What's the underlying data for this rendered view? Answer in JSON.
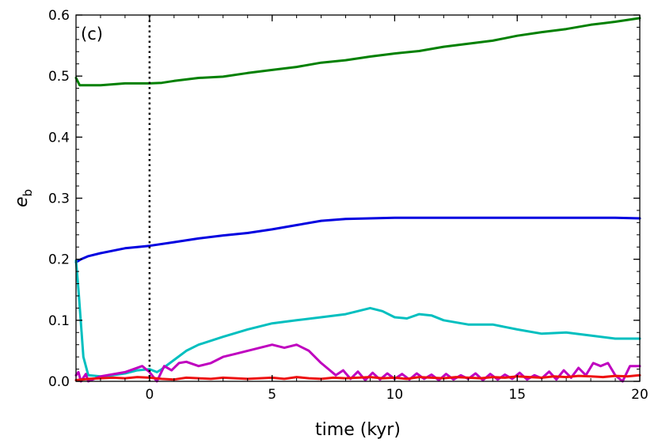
{
  "chart_data": {
    "type": "line",
    "panel_label": "(c)",
    "xlabel": "time (kyr)",
    "ylabel_main": "e",
    "ylabel_sub": "b",
    "xlim": [
      -3,
      20
    ],
    "ylim": [
      0,
      0.6
    ],
    "x_ticks": [
      0,
      5,
      10,
      15,
      20
    ],
    "x_tick_labels": [
      "0",
      "5",
      "10",
      "15",
      "20"
    ],
    "y_ticks": [
      0,
      0.1,
      0.2,
      0.3,
      0.4,
      0.5,
      0.6
    ],
    "y_tick_labels": [
      "0.0",
      "0.1",
      "0.2",
      "0.3",
      "0.4",
      "0.5",
      "0.6"
    ],
    "x_minor_step": 1,
    "y_minor_step": 0.02,
    "vline_x": 0,
    "grid": false,
    "series": [
      {
        "color": "#008000",
        "x": [
          -3,
          -2.85,
          -2,
          -1,
          0,
          0.5,
          1,
          2,
          3,
          4,
          5,
          6,
          7,
          8,
          9,
          10,
          11,
          12,
          13,
          14,
          15,
          16,
          17,
          18,
          19,
          20
        ],
        "y": [
          0.497,
          0.485,
          0.485,
          0.488,
          0.488,
          0.489,
          0.492,
          0.497,
          0.499,
          0.505,
          0.51,
          0.515,
          0.522,
          0.526,
          0.532,
          0.537,
          0.541,
          0.548,
          0.553,
          0.558,
          0.566,
          0.572,
          0.577,
          0.584,
          0.589,
          0.595
        ]
      },
      {
        "color": "#0000e0",
        "x": [
          -3,
          -2.8,
          -2.5,
          -2,
          -1,
          0,
          1,
          2,
          3,
          4,
          5,
          6,
          7,
          8,
          9,
          10,
          11,
          12,
          13,
          14,
          15,
          16,
          17,
          18,
          19,
          20
        ],
        "y": [
          0.195,
          0.2,
          0.205,
          0.21,
          0.218,
          0.222,
          0.228,
          0.234,
          0.239,
          0.243,
          0.249,
          0.256,
          0.263,
          0.266,
          0.267,
          0.268,
          0.268,
          0.268,
          0.268,
          0.268,
          0.268,
          0.268,
          0.268,
          0.268,
          0.268,
          0.267
        ]
      },
      {
        "color": "#00bfbf",
        "x": [
          -3,
          -2.9,
          -2.7,
          -2.5,
          -2,
          -1.5,
          -1,
          -0.5,
          0,
          0.3,
          0.5,
          1,
          1.5,
          2,
          3,
          4,
          5,
          6,
          7,
          8,
          9,
          9.5,
          10,
          10.5,
          11,
          11.5,
          12,
          13,
          14,
          15,
          16,
          17,
          18,
          19,
          20
        ],
        "y": [
          0.198,
          0.15,
          0.04,
          0.01,
          0.008,
          0.01,
          0.013,
          0.018,
          0.02,
          0.015,
          0.02,
          0.035,
          0.05,
          0.06,
          0.073,
          0.085,
          0.095,
          0.1,
          0.105,
          0.11,
          0.12,
          0.115,
          0.105,
          0.103,
          0.11,
          0.108,
          0.1,
          0.093,
          0.093,
          0.085,
          0.078,
          0.08,
          0.075,
          0.07,
          0.07
        ]
      },
      {
        "color": "#bf00bf",
        "x": [
          -3,
          -2.9,
          -2.8,
          -2.6,
          -2.5,
          -2.2,
          -2,
          -1,
          -0.3,
          0,
          0.3,
          0.6,
          0.9,
          1.2,
          1.5,
          2,
          2.5,
          3,
          3.5,
          4,
          4.5,
          5,
          5.5,
          6,
          6.5,
          7,
          7.3,
          7.6,
          7.9,
          8.2,
          8.5,
          8.8,
          9.1,
          9.4,
          9.7,
          10,
          10.3,
          10.6,
          10.9,
          11.2,
          11.5,
          11.8,
          12.1,
          12.4,
          12.7,
          13,
          13.3,
          13.6,
          13.9,
          14.2,
          14.5,
          14.8,
          15.1,
          15.4,
          15.7,
          16,
          16.3,
          16.6,
          16.9,
          17.2,
          17.5,
          17.8,
          18.1,
          18.4,
          18.7,
          19,
          19.3,
          19.6,
          20
        ],
        "y": [
          0.01,
          0.015,
          0.0,
          0.012,
          0.0,
          0.005,
          0.008,
          0.015,
          0.025,
          0.015,
          0.0,
          0.025,
          0.018,
          0.03,
          0.032,
          0.025,
          0.03,
          0.04,
          0.045,
          0.05,
          0.055,
          0.06,
          0.055,
          0.06,
          0.05,
          0.03,
          0.02,
          0.01,
          0.018,
          0.004,
          0.016,
          0.002,
          0.014,
          0.003,
          0.013,
          0.004,
          0.012,
          0.003,
          0.013,
          0.004,
          0.011,
          0.002,
          0.012,
          0.003,
          0.01,
          0.004,
          0.013,
          0.002,
          0.012,
          0.003,
          0.011,
          0.004,
          0.014,
          0.003,
          0.01,
          0.005,
          0.016,
          0.003,
          0.018,
          0.006,
          0.022,
          0.01,
          0.03,
          0.025,
          0.03,
          0.01,
          0.0,
          0.025,
          0.025
        ]
      },
      {
        "color": "#ee1111",
        "x": [
          -3,
          -2.5,
          -2,
          -1.5,
          -1,
          -0.5,
          0,
          0.5,
          1,
          1.5,
          2,
          2.5,
          3,
          3.5,
          4,
          4.5,
          5,
          5.5,
          6,
          6.5,
          7,
          7.5,
          8,
          8.5,
          9,
          9.5,
          10,
          10.5,
          11,
          11.5,
          12,
          12.5,
          13,
          13.5,
          14,
          14.5,
          15,
          15.5,
          16,
          16.5,
          17,
          17.5,
          18,
          18.5,
          19,
          19.5,
          20
        ],
        "y": [
          0.002,
          0.004,
          0.005,
          0.006,
          0.005,
          0.007,
          0.006,
          0.004,
          0.003,
          0.006,
          0.005,
          0.004,
          0.006,
          0.005,
          0.004,
          0.005,
          0.006,
          0.004,
          0.007,
          0.005,
          0.004,
          0.006,
          0.005,
          0.006,
          0.007,
          0.005,
          0.006,
          0.004,
          0.007,
          0.006,
          0.005,
          0.007,
          0.006,
          0.005,
          0.007,
          0.006,
          0.008,
          0.007,
          0.006,
          0.008,
          0.007,
          0.009,
          0.008,
          0.007,
          0.009,
          0.008,
          0.01
        ]
      }
    ]
  }
}
